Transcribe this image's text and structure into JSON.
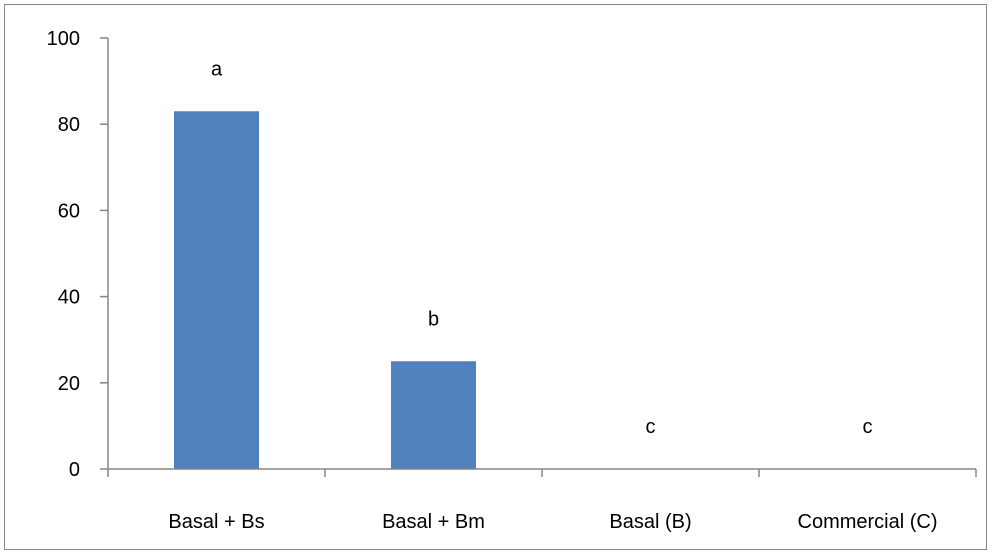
{
  "chart_data": {
    "type": "bar",
    "categories": [
      "Basal + Bs",
      "Basal + Bm",
      "Basal (B)",
      "Commercial (C)"
    ],
    "values": [
      83,
      25,
      0,
      0
    ],
    "data_labels": [
      "a",
      "b",
      "c",
      "c"
    ],
    "title": "",
    "xlabel": "",
    "ylabel": "",
    "ylim": [
      0,
      100
    ],
    "yticks": [
      0,
      20,
      40,
      60,
      80,
      100
    ],
    "grid": false,
    "legend": "none",
    "bar_color": "#4F81BD",
    "axis_color": "#868686"
  }
}
